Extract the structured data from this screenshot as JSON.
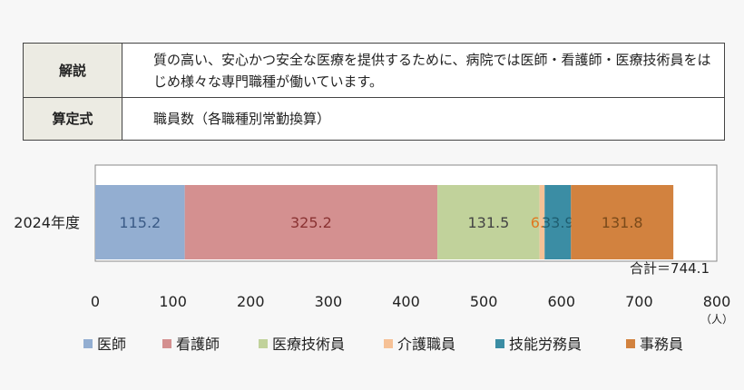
{
  "info": {
    "rows": [
      {
        "header": "解説",
        "body": "質の高い、安心かつ安全な医療を提供するために、病院では医師・看護師・医療技術員をはじめ様々な専門職種が働いています。"
      },
      {
        "header": "算定式",
        "body": "職員数（各職種別常勤換算）"
      }
    ]
  },
  "chart_data": {
    "type": "bar",
    "orientation": "horizontal",
    "stacked": true,
    "categories": [
      "2024年度"
    ],
    "series": [
      {
        "name": "医師",
        "values": [
          115.2
        ],
        "color": "#93aed1",
        "label_color": "#3a5a86"
      },
      {
        "name": "看護師",
        "values": [
          325.2
        ],
        "color": "#d49090",
        "label_color": "#8a3232"
      },
      {
        "name": "医療技術員",
        "values": [
          131.5
        ],
        "color": "#c1d29b",
        "label_color": "#444"
      },
      {
        "name": "介護職員",
        "values": [
          6.5
        ],
        "color": "#f6c196",
        "label_color": "#e07820"
      },
      {
        "name": "技能労務員",
        "values": [
          33.9
        ],
        "color": "#3b8da4",
        "label_color": "#1f5e70"
      },
      {
        "name": "事務員",
        "values": [
          131.8
        ],
        "color": "#d2823f",
        "label_color": "#7a4a1a"
      }
    ],
    "data_labels": [
      "115.2",
      "325.2",
      "131.5",
      "6.5",
      "33.9",
      "131.8"
    ],
    "total_label": "合計＝744.1",
    "x_ticks": [
      "0",
      "100",
      "200",
      "300",
      "400",
      "500",
      "600",
      "700",
      "800"
    ],
    "xlim": [
      0,
      800
    ],
    "x_unit": "（人）",
    "legend_position": "bottom",
    "grid": false
  }
}
